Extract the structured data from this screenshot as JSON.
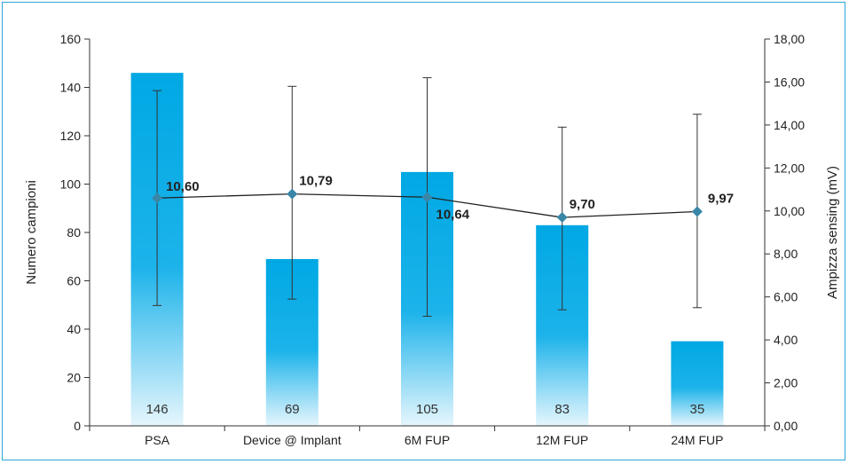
{
  "chart_data": {
    "type": "bar",
    "title": "",
    "categories": [
      "PSA",
      "Device @ Implant",
      "6M FUP",
      "12M FUP",
      "24M FUP"
    ],
    "bar_series": {
      "values": [
        146,
        69,
        105,
        83,
        35
      ],
      "labels": [
        "146",
        "69",
        "105",
        "83",
        "35"
      ],
      "axis": "left"
    },
    "line_series": {
      "values": [
        10.6,
        10.79,
        10.64,
        9.7,
        9.97
      ],
      "labels": [
        "10,60",
        "10,79",
        "10,64",
        "9,70",
        "9,97"
      ],
      "error_low": [
        5.6,
        5.9,
        5.1,
        5.4,
        5.5
      ],
      "error_high": [
        15.6,
        15.8,
        16.2,
        13.9,
        14.5
      ],
      "axis": "right"
    },
    "ylabel": "Numero campioni",
    "ylim": [
      0,
      160
    ],
    "yticks": [
      "0",
      "20",
      "40",
      "60",
      "80",
      "100",
      "120",
      "140",
      "160"
    ],
    "y2label": "Ampizza sensing (mV)",
    "y2lim": [
      0,
      18
    ],
    "y2ticks": [
      "0,00",
      "2,00",
      "4,00",
      "6,00",
      "8,00",
      "10,00",
      "12,00",
      "14,00",
      "16,00",
      "18,00"
    ],
    "grid": false,
    "colors": {
      "bar_top": "#00a8e4",
      "bar_bottom": "#e6f6fd",
      "line": "#222222",
      "marker": "#3a86a6",
      "frame": "#2aa7dc"
    }
  }
}
